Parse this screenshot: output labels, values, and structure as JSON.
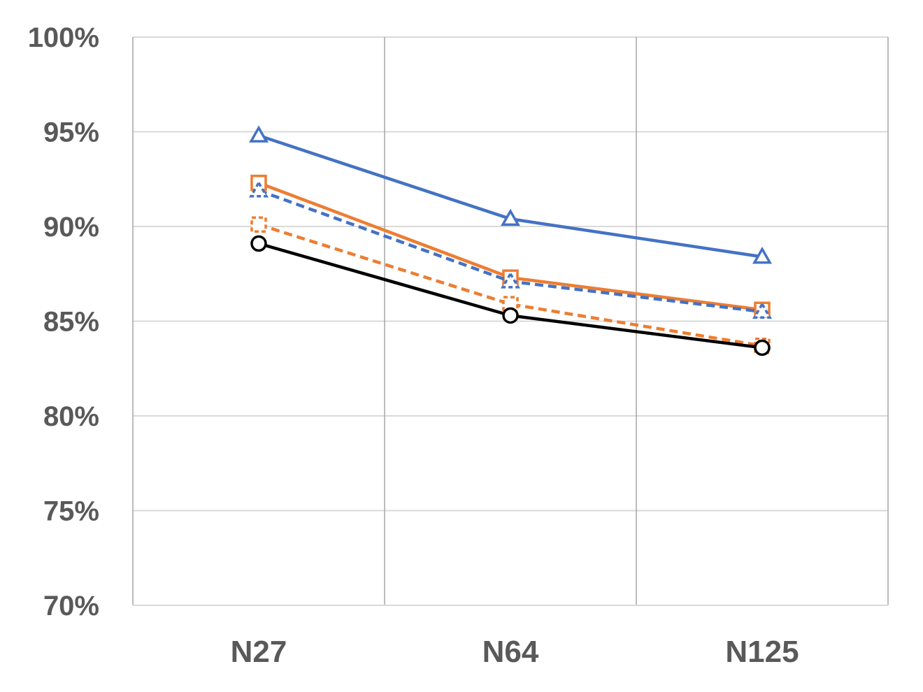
{
  "chart_data": {
    "type": "line",
    "title": "",
    "xlabel": "",
    "ylabel": "",
    "categories": [
      "N27",
      "N64",
      "N125"
    ],
    "y_ticks": [
      "70%",
      "75%",
      "80%",
      "85%",
      "90%",
      "95%",
      "100%"
    ],
    "ylim": [
      70,
      100
    ],
    "grid": {
      "horizontal": true,
      "vertical": true
    },
    "legend": "none",
    "series": [
      {
        "values": [
          94.8,
          90.4,
          88.4
        ],
        "color": "#4472c4",
        "dash": "solid",
        "marker": "triangle"
      },
      {
        "values": [
          92.3,
          87.3,
          85.6
        ],
        "color": "#ed7d31",
        "dash": "solid",
        "marker": "square"
      },
      {
        "values": [
          91.9,
          87.1,
          85.5
        ],
        "color": "#4472c4",
        "dash": "dashed",
        "marker": "triangle"
      },
      {
        "values": [
          90.1,
          85.9,
          83.7
        ],
        "color": "#ed7d31",
        "dash": "dashed",
        "marker": "square"
      },
      {
        "values": [
          89.1,
          85.3,
          83.6
        ],
        "color": "#000000",
        "dash": "solid",
        "marker": "circle"
      }
    ]
  }
}
